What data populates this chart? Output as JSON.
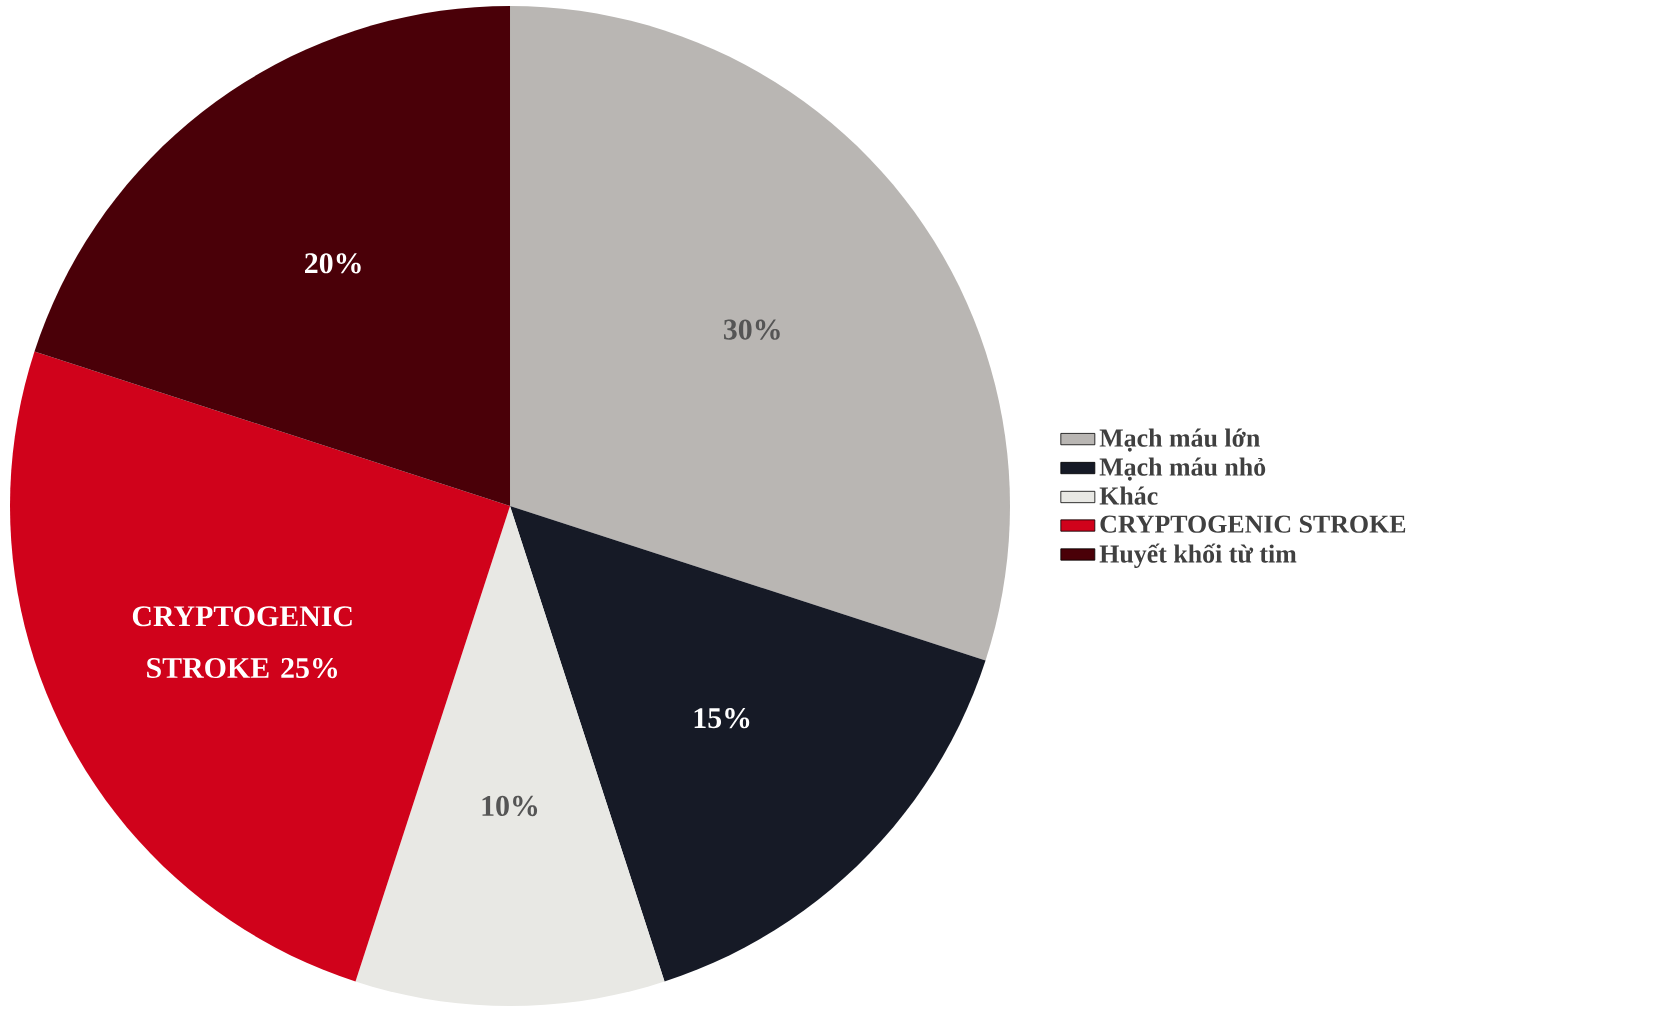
{
  "chart_data": {
    "type": "pie",
    "categories": [
      "Mạch máu lớn",
      "Mạch máu nhỏ",
      "Khác",
      "CRYPTOGENIC STROKE",
      "Huyết khối từ tim"
    ],
    "values": [
      30,
      15,
      10,
      25,
      20
    ],
    "colors": [
      "#b9b6b3",
      "#161a26",
      "#e8e8e4",
      "#d0021b",
      "#4a0008"
    ],
    "value_labels": [
      "30%",
      "15%",
      "10%",
      "CRYPTOGENIC STROKE 25%",
      "20%"
    ],
    "legend": "right"
  }
}
